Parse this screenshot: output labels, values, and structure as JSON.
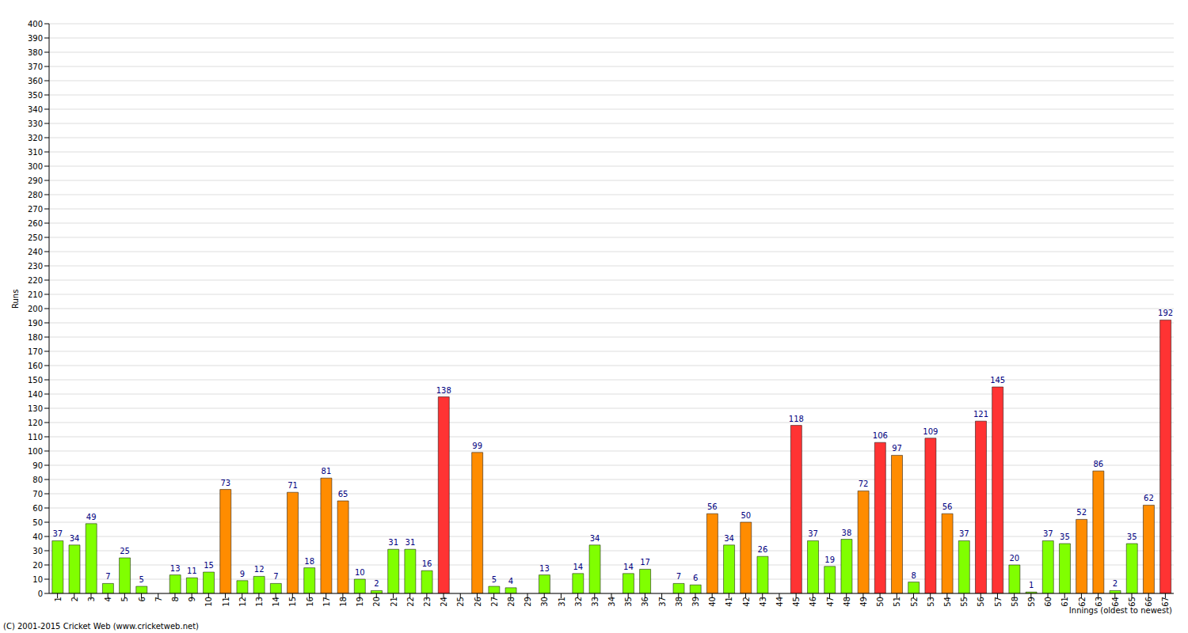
{
  "chart_data": {
    "type": "bar",
    "x_label": "Innings (oldest to newest)",
    "y_label": "Runs",
    "footer": "(C) 2001-2015 Cricket Web (www.cricketweb.net)",
    "categories": [
      "1",
      "2",
      "3",
      "4",
      "5",
      "6",
      "7",
      "8",
      "9",
      "10",
      "11",
      "12",
      "13",
      "14",
      "15",
      "16",
      "17",
      "18",
      "19",
      "20",
      "21",
      "22",
      "23",
      "24",
      "25",
      "26",
      "27",
      "28",
      "29",
      "30",
      "31",
      "32",
      "33",
      "34",
      "35",
      "36",
      "37",
      "38",
      "39",
      "40",
      "41",
      "42",
      "43",
      "44",
      "45",
      "46",
      "47",
      "48",
      "49",
      "50",
      "51",
      "52",
      "53",
      "54",
      "55",
      "56",
      "57",
      "58",
      "59",
      "60",
      "61",
      "62",
      "63",
      "64",
      "65",
      "66",
      "67"
    ],
    "values": [
      37,
      34,
      49,
      7,
      25,
      5,
      0,
      13,
      11,
      15,
      73,
      9,
      12,
      7,
      71,
      18,
      81,
      65,
      10,
      2,
      31,
      31,
      16,
      138,
      0,
      99,
      5,
      4,
      0,
      13,
      0,
      14,
      34,
      0,
      14,
      17,
      0,
      7,
      6,
      56,
      34,
      50,
      26,
      0,
      118,
      37,
      19,
      38,
      72,
      106,
      97,
      8,
      109,
      56,
      37,
      121,
      145,
      20,
      1,
      37,
      35,
      52,
      86,
      2,
      35,
      62,
      192
    ],
    "colors": [
      "#80ff00",
      "#80ff00",
      "#80ff00",
      "#80ff00",
      "#80ff00",
      "#80ff00",
      "#80ff00",
      "#80ff00",
      "#80ff00",
      "#80ff00",
      "#ff8c00",
      "#80ff00",
      "#80ff00",
      "#80ff00",
      "#ff8c00",
      "#80ff00",
      "#ff8c00",
      "#ff8c00",
      "#80ff00",
      "#80ff00",
      "#80ff00",
      "#80ff00",
      "#80ff00",
      "#ff3333",
      "#80ff00",
      "#ff8c00",
      "#80ff00",
      "#80ff00",
      "#80ff00",
      "#80ff00",
      "#80ff00",
      "#80ff00",
      "#80ff00",
      "#80ff00",
      "#80ff00",
      "#80ff00",
      "#80ff00",
      "#80ff00",
      "#80ff00",
      "#ff8c00",
      "#80ff00",
      "#ff8c00",
      "#80ff00",
      "#80ff00",
      "#ff3333",
      "#80ff00",
      "#80ff00",
      "#80ff00",
      "#ff8c00",
      "#ff3333",
      "#ff8c00",
      "#80ff00",
      "#ff3333",
      "#ff8c00",
      "#80ff00",
      "#ff3333",
      "#ff3333",
      "#80ff00",
      "#80ff00",
      "#80ff00",
      "#80ff00",
      "#ff8c00",
      "#ff8c00",
      "#80ff00",
      "#80ff00",
      "#ff8c00",
      "#ff3333"
    ],
    "ylim": [
      0,
      400
    ],
    "yticks": [
      0,
      10,
      20,
      30,
      40,
      50,
      60,
      70,
      80,
      90,
      100,
      110,
      120,
      130,
      140,
      150,
      160,
      170,
      180,
      190,
      200,
      210,
      220,
      230,
      240,
      250,
      260,
      270,
      280,
      290,
      300,
      310,
      320,
      330,
      340,
      350,
      360,
      370,
      380,
      390,
      400
    ],
    "grid": true,
    "data_labels": true
  }
}
